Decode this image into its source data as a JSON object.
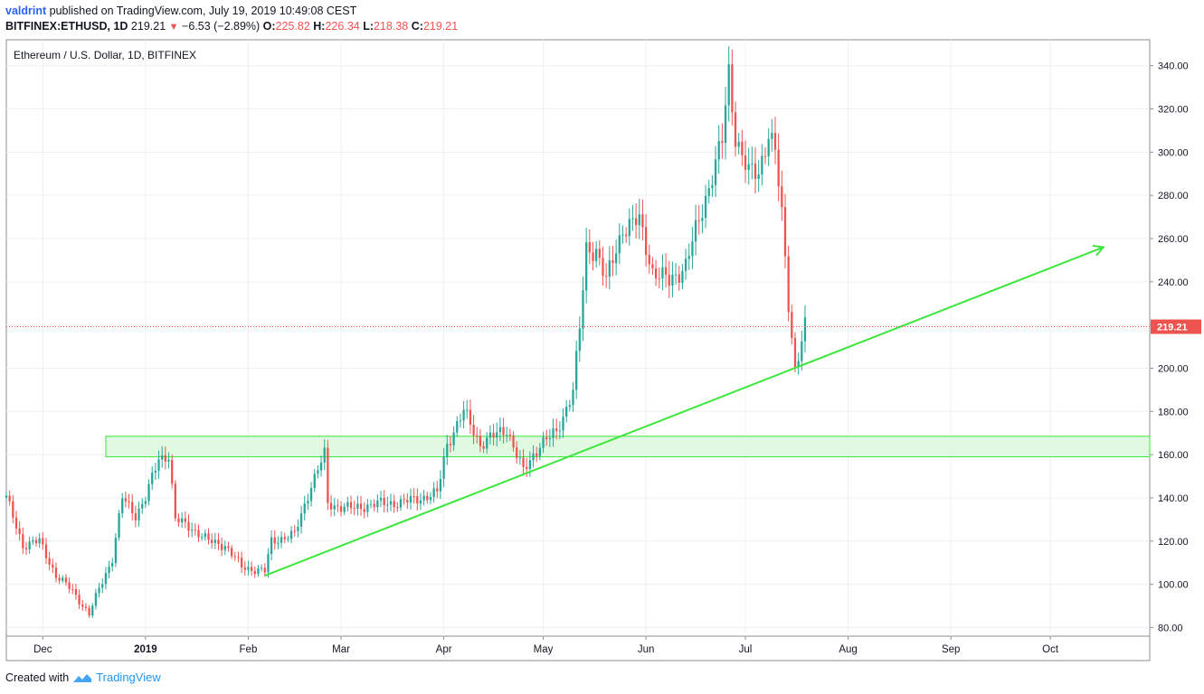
{
  "header": {
    "author": "valdrint",
    "published_text": "published on TradingView.com, July 19, 2019 10:49:08 CEST",
    "symbol": "BITFINEX:ETHUSD, 1D",
    "last": "219.21",
    "change": "−6.53 (−2.89%)",
    "o_label": "O:",
    "o_val": "225.82",
    "h_label": "H:",
    "h_val": "226.34",
    "l_label": "L:",
    "l_val": "218.38",
    "c_label": "C:",
    "c_val": "219.21"
  },
  "footer": {
    "created_with": "Created with",
    "brand": "TradingView"
  },
  "colors": {
    "up": "#26a69a",
    "down": "#ef5350",
    "trendline": "#3ce63c",
    "zone_fill": "#d9f7d9",
    "zone_border": "#3ce63c",
    "price_tag": "#ef5350"
  },
  "chart_data": {
    "type": "candlestick",
    "title": "Ethereum / U.S. Dollar, 1D, BITFINEX",
    "ylim": [
      76,
      352
    ],
    "y_ticks": [
      "340.00",
      "320.00",
      "300.00",
      "280.00",
      "260.00",
      "240.00",
      "220.00",
      "200.00",
      "180.00",
      "160.00",
      "140.00",
      "120.00",
      "100.00",
      "80.00"
    ],
    "y_tick_values": [
      340,
      320,
      300,
      280,
      260,
      240,
      220,
      200,
      180,
      160,
      140,
      120,
      100,
      80
    ],
    "x_labels": [
      "Dec",
      "2019",
      "Feb",
      "Mar",
      "Apr",
      "May",
      "Jun",
      "Jul",
      "Aug",
      "Sep",
      "Oct"
    ],
    "x_label_dates": [
      "2018-12-01",
      "2019-01-01",
      "2019-02-01",
      "2019-03-01",
      "2019-04-01",
      "2019-05-01",
      "2019-06-01",
      "2019-07-01",
      "2019-08-01",
      "2019-09-01",
      "2019-10-01"
    ],
    "x_start": "2018-11-20",
    "x_end": "2019-10-31",
    "current_price": 219.21,
    "current_price_label": "219.21",
    "support_zone": {
      "from": "2018-12-20",
      "to": "2019-10-31",
      "low": 159,
      "high": 168.5
    },
    "trendline": {
      "start": [
        "2019-02-06",
        104
      ],
      "end": [
        "2019-10-17",
        256
      ]
    },
    "anchors": [
      [
        "2018-11-20",
        140
      ],
      [
        "2018-11-25",
        118
      ],
      [
        "2018-11-30",
        120
      ],
      [
        "2018-12-05",
        104
      ],
      [
        "2018-12-10",
        97
      ],
      [
        "2018-12-15",
        86
      ],
      [
        "2018-12-18",
        98
      ],
      [
        "2018-12-22",
        112
      ],
      [
        "2018-12-25",
        140
      ],
      [
        "2018-12-29",
        132
      ],
      [
        "2019-01-01",
        140
      ],
      [
        "2019-01-05",
        158
      ],
      [
        "2019-01-08",
        160
      ],
      [
        "2019-01-10",
        130
      ],
      [
        "2019-01-15",
        126
      ],
      [
        "2019-01-20",
        120
      ],
      [
        "2019-01-25",
        118
      ],
      [
        "2019-01-30",
        108
      ],
      [
        "2019-02-06",
        106
      ],
      [
        "2019-02-08",
        120
      ],
      [
        "2019-02-15",
        123
      ],
      [
        "2019-02-20",
        146
      ],
      [
        "2019-02-24",
        160
      ],
      [
        "2019-02-25",
        137
      ],
      [
        "2019-03-05",
        135
      ],
      [
        "2019-03-10",
        137
      ],
      [
        "2019-03-20",
        138
      ],
      [
        "2019-03-30",
        142
      ],
      [
        "2019-04-02",
        165
      ],
      [
        "2019-04-07",
        180
      ],
      [
        "2019-04-12",
        165
      ],
      [
        "2019-04-20",
        172
      ],
      [
        "2019-04-25",
        152
      ],
      [
        "2019-04-30",
        165
      ],
      [
        "2019-05-05",
        170
      ],
      [
        "2019-05-10",
        190
      ],
      [
        "2019-05-12",
        218
      ],
      [
        "2019-05-14",
        255
      ],
      [
        "2019-05-17",
        255
      ],
      [
        "2019-05-20",
        240
      ],
      [
        "2019-05-25",
        265
      ],
      [
        "2019-05-30",
        268
      ],
      [
        "2019-06-03",
        245
      ],
      [
        "2019-06-08",
        240
      ],
      [
        "2019-06-13",
        248
      ],
      [
        "2019-06-17",
        268
      ],
      [
        "2019-06-21",
        290
      ],
      [
        "2019-06-24",
        305
      ],
      [
        "2019-06-26",
        336
      ],
      [
        "2019-06-28",
        308
      ],
      [
        "2019-07-02",
        290
      ],
      [
        "2019-07-05",
        290
      ],
      [
        "2019-07-08",
        310
      ],
      [
        "2019-07-10",
        300
      ],
      [
        "2019-07-12",
        270
      ],
      [
        "2019-07-14",
        230
      ],
      [
        "2019-07-16",
        200
      ],
      [
        "2019-07-19",
        219
      ]
    ]
  }
}
